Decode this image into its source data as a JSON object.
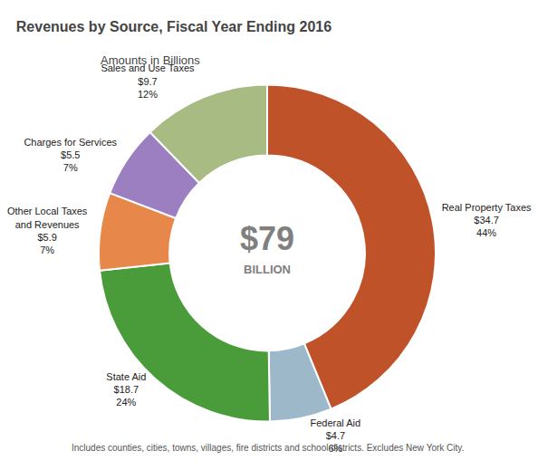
{
  "chart_data": {
    "type": "pie",
    "title": "Revenues by Source, Fiscal Year Ending 2016",
    "subtitle": "Amounts in Billions",
    "center_labels": [
      "$79",
      "BILLION"
    ],
    "footnote": "Includes counties, cities, towns, villages, fire districts and school districts. Excludes New York City.",
    "categories": [
      "Real Property Taxes",
      "Federal Aid",
      "State Aid",
      "Other Local Taxes\nand Revenues",
      "Charges for Services",
      "Sales and Use Taxes"
    ],
    "values": [
      34.7,
      4.7,
      18.7,
      5.9,
      5.5,
      9.7
    ],
    "value_labels": [
      "$34.7",
      "$4.7",
      "$18.7",
      "$5.9",
      "$5.5",
      "$9.7"
    ],
    "shares": [
      44,
      6,
      24,
      7,
      7,
      12
    ],
    "share_labels": [
      "44%",
      "6%",
      "24%",
      "7%",
      "7%",
      "12%"
    ],
    "colors": [
      "#C0522A",
      "#9DB8C8",
      "#4A9B3A",
      "#E8874A",
      "#9B7FC0",
      "#A8BB82"
    ]
  }
}
